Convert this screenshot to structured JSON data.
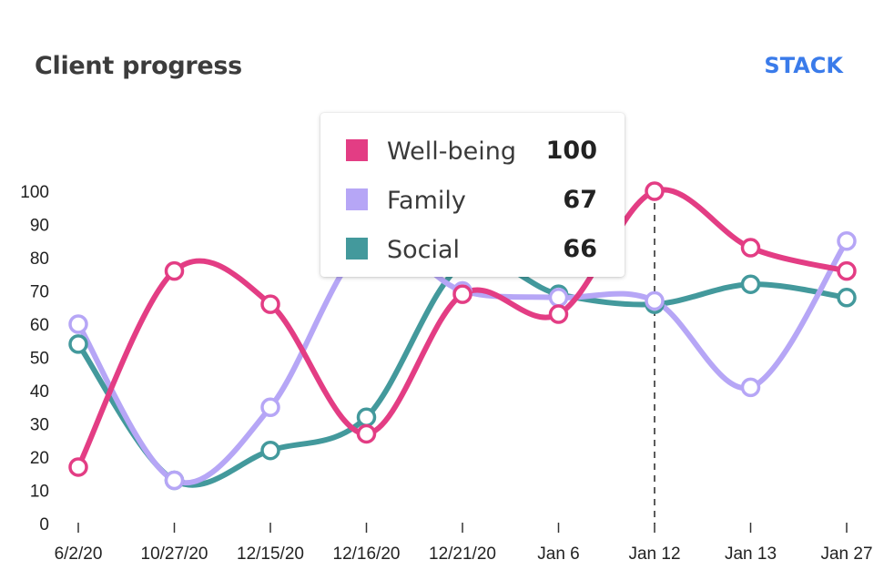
{
  "header": {
    "title": "Client progress",
    "stack_label": "STACK"
  },
  "colors": {
    "wellbeing": "#e33d84",
    "family": "#b6a6f6",
    "social": "#43999c",
    "axis_text": "#222222"
  },
  "tooltip": {
    "rows": [
      {
        "name": "Well-being",
        "value": "100",
        "color": "#e33d84"
      },
      {
        "name": "Family",
        "value": "67",
        "color": "#b6a6f6"
      },
      {
        "name": "Social",
        "value": "66",
        "color": "#43999c"
      }
    ]
  },
  "chart_data": {
    "type": "line",
    "title": "Client progress",
    "categories": [
      "6/2/20",
      "10/27/20",
      "12/15/20",
      "12/16/20",
      "12/21/20",
      "Jan 6",
      "Jan 12",
      "Jan 13",
      "Jan 27"
    ],
    "y_ticks": [
      0,
      10,
      20,
      30,
      40,
      50,
      60,
      70,
      80,
      90,
      100
    ],
    "ylim": [
      0,
      100
    ],
    "highlighted_category": "Jan 12",
    "series": [
      {
        "name": "Well-being",
        "color": "#e33d84",
        "values": [
          17,
          76,
          66,
          27,
          69,
          63,
          100,
          83,
          76
        ]
      },
      {
        "name": "Family",
        "color": "#b6a6f6",
        "values": [
          60,
          13,
          35,
          84,
          70,
          68,
          67,
          41,
          85
        ]
      },
      {
        "name": "Social",
        "color": "#43999c",
        "values": [
          54,
          13,
          22,
          32,
          78,
          69,
          66,
          72,
          68
        ]
      }
    ],
    "grid": false,
    "legend": "tooltip"
  }
}
